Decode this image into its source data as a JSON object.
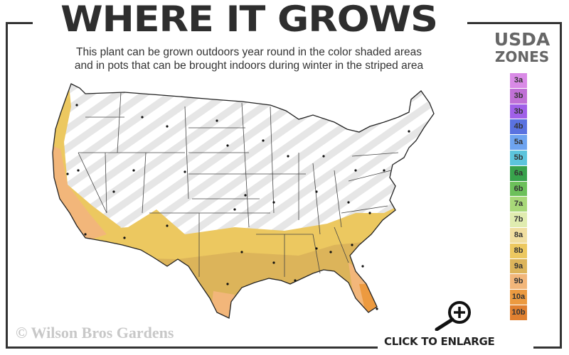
{
  "header": {
    "title": "WHERE IT GROWS",
    "subtitle_line1": "This plant can be grown outdoors year round in the color shaded areas",
    "subtitle_line2": "and in pots that can be brought indoors during winter in the striped area"
  },
  "legend": {
    "title_line1": "USDA",
    "title_line2": "ZONES",
    "zones": [
      {
        "label": "3a",
        "color": "#d98ae6"
      },
      {
        "label": "3b",
        "color": "#c070d6"
      },
      {
        "label": "3b",
        "color": "#a060e8"
      },
      {
        "label": "4b",
        "color": "#5a72e0"
      },
      {
        "label": "5a",
        "color": "#6ea4f0"
      },
      {
        "label": "5b",
        "color": "#5cc4dc"
      },
      {
        "label": "6a",
        "color": "#38a24c"
      },
      {
        "label": "6b",
        "color": "#6cc05a"
      },
      {
        "label": "7a",
        "color": "#a8d878"
      },
      {
        "label": "7b",
        "color": "#e0ecb0"
      },
      {
        "label": "8a",
        "color": "#f0dea0"
      },
      {
        "label": "8b",
        "color": "#ecc860"
      },
      {
        "label": "9a",
        "color": "#dcb45a"
      },
      {
        "label": "9b",
        "color": "#f2b67a"
      },
      {
        "label": "10a",
        "color": "#ec9a40"
      },
      {
        "label": "10b",
        "color": "#e08030"
      }
    ]
  },
  "footer": {
    "copyright": "© Wilson Bros Gardens",
    "enlarge_label": "CLICK TO ENLARGE"
  }
}
